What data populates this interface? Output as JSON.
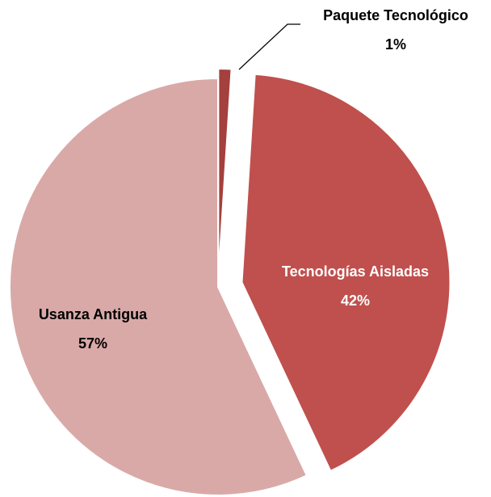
{
  "chart_data": {
    "type": "pie",
    "categories": [
      "Paquete Tecnológico",
      "Tecnologías Aisladas",
      "Usanza Antigua"
    ],
    "values": [
      1,
      42,
      57
    ],
    "value_labels": [
      "1%",
      "42%",
      "57%"
    ],
    "colors": [
      "#a4403d",
      "#c0504d",
      "#d9a9a8"
    ]
  }
}
